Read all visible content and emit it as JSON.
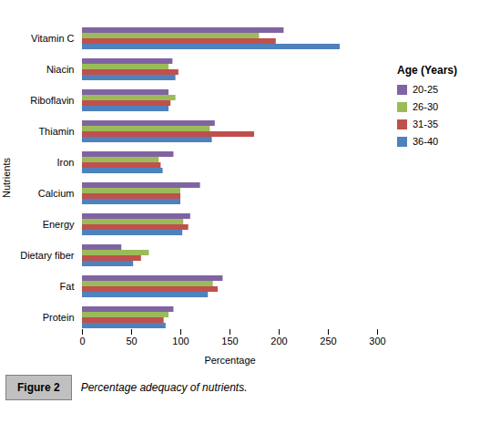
{
  "chart_data": {
    "type": "bar",
    "orientation": "horizontal",
    "categories": [
      "Vitamin C",
      "Niacin",
      "Riboflavin",
      "Thiamin",
      "Iron",
      "Calcium",
      "Energy",
      "Dietary fiber",
      "Fat",
      "Protein"
    ],
    "series": [
      {
        "name": "20-25",
        "color": "#8064A2",
        "values": [
          205,
          92,
          88,
          135,
          93,
          120,
          110,
          40,
          143,
          93
        ]
      },
      {
        "name": "26-30",
        "color": "#9BBB59",
        "values": [
          180,
          88,
          95,
          130,
          78,
          100,
          103,
          68,
          133,
          88
        ]
      },
      {
        "name": "31-35",
        "color": "#C0504D",
        "values": [
          197,
          98,
          90,
          175,
          80,
          100,
          108,
          60,
          138,
          83
        ]
      },
      {
        "name": "36-40",
        "color": "#4F81BD",
        "values": [
          262,
          95,
          88,
          132,
          82,
          100,
          102,
          52,
          128,
          85
        ]
      }
    ],
    "xlabel": "Percentage",
    "ylabel": "Nutrients",
    "xlim": [
      0,
      300
    ],
    "xticks": [
      0,
      50,
      100,
      150,
      200,
      250,
      300
    ],
    "grid": false,
    "legend": "right",
    "legend_title": "Age (Years)",
    "annotations": [
      "Figure 2",
      "Percentage adequacy of nutrients."
    ]
  }
}
